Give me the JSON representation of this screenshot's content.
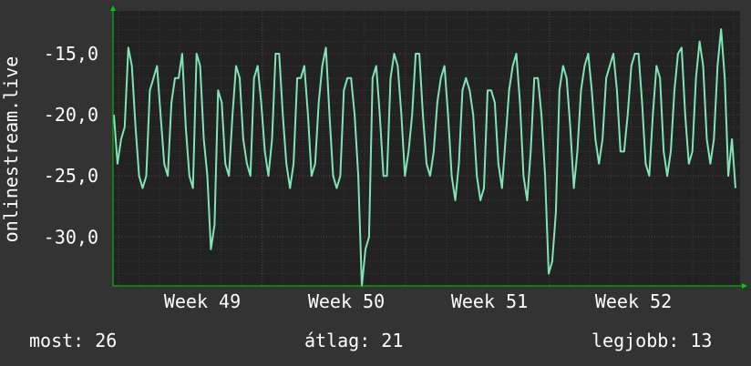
{
  "chart_data": {
    "type": "line",
    "title": "",
    "ylabel": "onlinestream.live",
    "xlabel": "",
    "x_tick_labels": [
      "Week 49",
      "Week 50",
      "Week 51",
      "Week 52"
    ],
    "y_tick_labels": [
      "-15,0",
      "-20,0",
      "-25,0",
      "-30,0"
    ],
    "y_ticks": [
      -15,
      -20,
      -25,
      -30
    ],
    "ylim": [
      -34,
      -11.5
    ],
    "grid": true,
    "colors": {
      "background": "#333333",
      "plot_background": "#222222",
      "grid_major": "#5a3a3a",
      "grid_minor": "#3a3a3a",
      "line": "#7fe5b5",
      "text": "#ffffff",
      "arrow": "#00cc00"
    },
    "series": [
      {
        "values": [
          -20,
          -24,
          -22,
          -21,
          -14.5,
          -16,
          -21,
          -25,
          -26,
          -25,
          -18,
          -17,
          -16,
          -20,
          -24,
          -25,
          -19,
          -17,
          -17,
          -15,
          -21,
          -25,
          -26,
          -15,
          -16,
          -22,
          -25,
          -31,
          -29,
          -18,
          -19,
          -24,
          -25,
          -20,
          -16,
          -17,
          -22,
          -24,
          -25,
          -17,
          -16,
          -19,
          -23,
          -25,
          -22,
          -15,
          -15,
          -20,
          -24,
          -26,
          -24,
          -17,
          -17,
          -16,
          -20,
          -25,
          -24,
          -19,
          -16,
          -14.5,
          -20,
          -25,
          -26,
          -25,
          -18,
          -17,
          -17,
          -20,
          -25,
          -34,
          -31,
          -30,
          -17,
          -16,
          -20,
          -25,
          -25,
          -17,
          -15,
          -16,
          -20,
          -25,
          -23,
          -20,
          -15,
          -15,
          -20,
          -24,
          -25,
          -23,
          -19,
          -17,
          -16,
          -20,
          -25,
          -27,
          -24,
          -18,
          -17,
          -18,
          -20,
          -25,
          -27,
          -26,
          -18,
          -18,
          -19,
          -24,
          -26,
          -22,
          -18,
          -16,
          -15,
          -19,
          -25,
          -27,
          -23,
          -17,
          -17,
          -20,
          -25,
          -33,
          -32,
          -28,
          -18,
          -16,
          -17,
          -21,
          -26,
          -23,
          -18,
          -16,
          -15,
          -18,
          -22,
          -24,
          -22,
          -17,
          -16,
          -15,
          -18,
          -23,
          -23,
          -20,
          -16,
          -15,
          -15,
          -19,
          -24,
          -25,
          -20,
          -16,
          -17,
          -23,
          -25,
          -23,
          -18,
          -15,
          -14.5,
          -20,
          -24,
          -23,
          -17,
          -14,
          -16,
          -22,
          -24,
          -22,
          -16,
          -13,
          -17,
          -25,
          -22,
          -26
        ]
      }
    ]
  },
  "stats": {
    "current": "most: 26",
    "average": "átlag: 21",
    "best": "legjobb: 13"
  }
}
